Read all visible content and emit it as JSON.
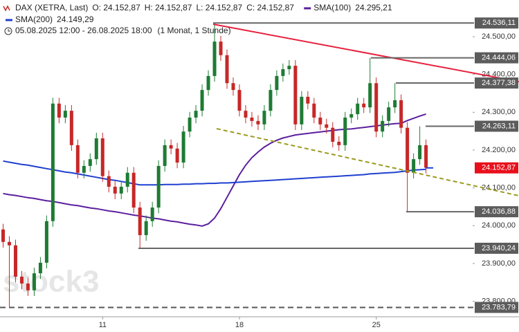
{
  "chart_data": {
    "type": "candlestick",
    "title": "DAX (XETRA, Last)",
    "ohlc_labels": [
      "O: 24.152,87",
      "H: 24.152,87",
      "L: 24.152,87",
      "C: 24.152,87"
    ],
    "period": "05.08.2025 12:00 - 26.08.2025 18:00",
    "period_note": "(1 Monat, 1 Stunde)",
    "watermark": "stock3",
    "colors": {
      "up": "#1e7b34",
      "down": "#c62828"
    },
    "open": [
      23990,
      23957,
      23948,
      23865,
      23847,
      23829,
      23874,
      23902,
      24012,
      24323,
      24286,
      24304,
      24213,
      24140,
      24158,
      24176,
      24231,
      24131,
      24103,
      24085,
      24103,
      24140,
      24048,
      23975,
      24012,
      24048,
      24158,
      24213,
      24204,
      24167,
      24249,
      24286,
      24304,
      24359,
      24396,
      24487,
      24451,
      24377,
      24359,
      24304,
      24286,
      24277,
      24268,
      24304,
      24359,
      24396,
      24414,
      24423,
      24268,
      24341,
      24323,
      24286,
      24268,
      24259,
      24222,
      24213,
      24286,
      24295,
      24323,
      24313,
      24377,
      24249,
      24277,
      24313,
      24332,
      24259,
      24140,
      24176,
      24213
    ],
    "high": [
      24005,
      23972,
      23963,
      23880,
      23862,
      23889,
      23917,
      24027,
      24338,
      24338,
      24319,
      24319,
      24228,
      24173,
      24191,
      24246,
      24246,
      24146,
      24118,
      24118,
      24155,
      24155,
      24063,
      24027,
      24063,
      24173,
      24228,
      24228,
      24219,
      24264,
      24301,
      24319,
      24374,
      24411,
      24536,
      24502,
      24466,
      24392,
      24374,
      24319,
      24301,
      24292,
      24319,
      24374,
      24411,
      24429,
      24438,
      24438,
      24356,
      24356,
      24338,
      24301,
      24283,
      24274,
      24237,
      24301,
      24310,
      24338,
      24338,
      24444,
      24392,
      24292,
      24328,
      24377,
      24347,
      24274,
      24191,
      24263,
      24228
    ],
    "low": [
      23942,
      23784,
      23850,
      23832,
      23814,
      23814,
      23859,
      23887,
      23997,
      24271,
      24271,
      24198,
      24125,
      24125,
      24143,
      24161,
      24116,
      24088,
      24070,
      24070,
      24088,
      24033,
      23940,
      23960,
      23997,
      24033,
      24143,
      24189,
      24152,
      24152,
      24234,
      24271,
      24289,
      24344,
      24381,
      24436,
      24362,
      24344,
      24289,
      24271,
      24262,
      24253,
      24253,
      24289,
      24344,
      24381,
      24399,
      24253,
      24253,
      24308,
      24271,
      24253,
      24244,
      24207,
      24198,
      24198,
      24271,
      24280,
      24298,
      24298,
      24234,
      24234,
      24262,
      24298,
      24244,
      24037,
      24125,
      24161,
      24138
    ],
    "close": [
      23957,
      23948,
      23865,
      23847,
      23829,
      23874,
      23902,
      24012,
      24323,
      24286,
      24304,
      24213,
      24140,
      24158,
      24176,
      24231,
      24131,
      24103,
      24085,
      24103,
      24140,
      24048,
      23975,
      24012,
      24048,
      24158,
      24213,
      24204,
      24167,
      24249,
      24286,
      24304,
      24359,
      24396,
      24487,
      24451,
      24377,
      24359,
      24304,
      24286,
      24277,
      24268,
      24304,
      24359,
      24396,
      24414,
      24423,
      24268,
      24341,
      24323,
      24286,
      24268,
      24259,
      24222,
      24213,
      24286,
      24295,
      24323,
      24313,
      24377,
      24249,
      24277,
      24313,
      24332,
      24259,
      24140,
      24176,
      24213,
      24153
    ],
    "series": [
      {
        "name": "SMA(100)",
        "color": "#5b1e9e",
        "value_label": "24.295,21",
        "values": [
          24085,
          24082,
          24080,
          24077,
          24074,
          24072,
          24069,
          24066,
          24064,
          24061,
          24058,
          24055,
          24053,
          24050,
          24047,
          24045,
          24042,
          24039,
          24037,
          24034,
          24031,
          24028,
          24026,
          24023,
          24020,
          24018,
          24015,
          24012,
          24010,
          24007,
          24004,
          24002,
          23999,
          24005,
          24020,
          24045,
          24075,
          24105,
          24135,
          24160,
          24180,
          24195,
          24208,
          24218,
          24226,
          24232,
          24236,
          24240,
          24242,
          24244,
          24246,
          24248,
          24250,
          24252,
          24254,
          24255,
          24256,
          24258,
          24260,
          24262,
          24264,
          24266,
          24268,
          24270,
          24271,
          24278,
          24284,
          24290,
          24295.21
        ]
      },
      {
        "name": "SMA(200)",
        "color": "#1f3fd0",
        "value_label": "24.149,29",
        "values": [
          24171,
          24168,
          24165,
          24162,
          24160,
          24157,
          24154,
          24151,
          24148,
          24145,
          24142,
          24140,
          24137,
          24134,
          24131,
          24128,
          24125,
          24122,
          24120,
          24117,
          24114,
          24111,
          24108,
          24108,
          24108,
          24108,
          24109,
          24109,
          24109,
          24110,
          24110,
          24111,
          24111,
          24112,
          24112,
          24113,
          24113,
          24114,
          24115,
          24116,
          24117,
          24118,
          24119,
          24120,
          24121,
          24122,
          24123,
          24124,
          24125,
          24126,
          24127,
          24128,
          24129,
          24130,
          24131,
          24132,
          24133,
          24134,
          24135,
          24137,
          24138,
          24139,
          24140,
          24141,
          24143,
          24145,
          24147,
          24148,
          24149.29
        ]
      }
    ],
    "ylim": [
      23759,
      24597
    ],
    "yticks": [
      {
        "value": 23800,
        "label": "23.800,00"
      },
      {
        "value": 23900,
        "label": "23.900,00"
      },
      {
        "value": 24000,
        "label": "24.000,00"
      },
      {
        "value": 24100,
        "label": "24.100,00"
      },
      {
        "value": 24200,
        "label": "24.200,00"
      },
      {
        "value": 24300,
        "label": "24.300,00"
      },
      {
        "value": 24400,
        "label": "24.400,00"
      },
      {
        "value": 24500,
        "label": "24.500,00"
      }
    ],
    "xlim": [
      -0.5,
      75.5
    ],
    "xticks": [
      {
        "value": 16,
        "label": "11"
      },
      {
        "value": 38,
        "label": "18"
      },
      {
        "value": 60,
        "label": "25"
      }
    ],
    "levels": [
      {
        "value": 24536.11,
        "label": "24.536,11"
      },
      {
        "value": 24444.06,
        "label": "24.444,06"
      },
      {
        "value": 24377.38,
        "label": "24.377,38"
      },
      {
        "value": 24263.11,
        "label": "24.263,11"
      },
      {
        "value": 24036.88,
        "label": "24.036,88"
      },
      {
        "value": 23940.24,
        "label": "23.940,24"
      },
      {
        "value": 23783.79,
        "label": "23.783,79"
      }
    ],
    "last_price": {
      "value": 24152.87,
      "label": "24.152,87",
      "color": "#e8101c"
    }
  }
}
